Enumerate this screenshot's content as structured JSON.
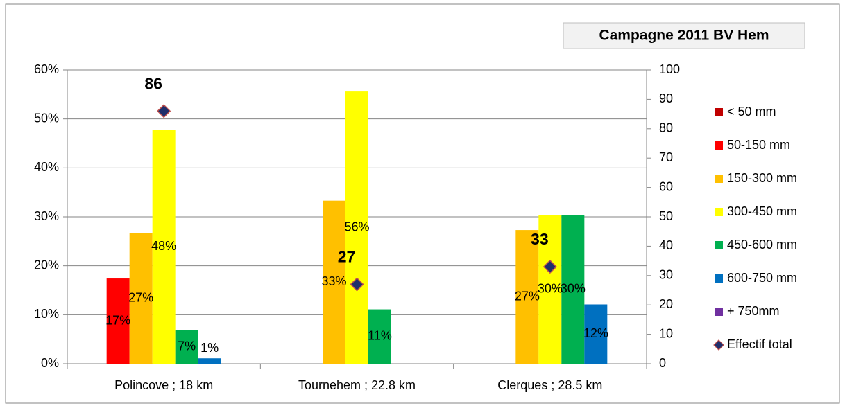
{
  "chart_data": {
    "type": "bar",
    "title": "Campagne 2011 BV Hem",
    "categories": [
      "Polincove ; 18 km",
      "Tournehem ; 22.8 km",
      "Clerques ; 28.5 km"
    ],
    "series": [
      {
        "name": "< 50 mm",
        "color": "#c00000",
        "values": [
          null,
          null,
          null
        ],
        "value_labels": [
          null,
          null,
          null
        ]
      },
      {
        "name": "50-150 mm",
        "color": "#ff0000",
        "values": [
          17.4,
          null,
          null
        ],
        "value_labels": [
          "17%",
          null,
          null
        ]
      },
      {
        "name": "150-300 mm",
        "color": "#ffc000",
        "values": [
          26.7,
          33.3,
          27.3
        ],
        "value_labels": [
          "27%",
          "33%",
          "27%"
        ]
      },
      {
        "name": "300-450 mm",
        "color": "#ffff00",
        "values": [
          47.7,
          55.6,
          30.3
        ],
        "value_labels": [
          "48%",
          "56%",
          "30%"
        ]
      },
      {
        "name": "450-600 mm",
        "color": "#00b050",
        "values": [
          6.9,
          11.1,
          30.3
        ],
        "value_labels": [
          "7%",
          "11%",
          "30%"
        ]
      },
      {
        "name": "600-750 mm",
        "color": "#0070c0",
        "values": [
          1.1,
          null,
          12.1
        ],
        "value_labels": [
          "1%",
          null,
          "12%"
        ]
      },
      {
        "name": "+ 750mm",
        "color": "#7030a0",
        "values": [
          null,
          null,
          null
        ],
        "value_labels": [
          null,
          null,
          null
        ]
      },
      {
        "name": "Effectif total",
        "type": "scatter",
        "axis": "y2",
        "color": "#1f2f6b",
        "values": [
          86,
          27,
          33
        ]
      }
    ],
    "ylim": [
      0,
      60
    ],
    "yticks": [
      {
        "value": 0,
        "label": "0%"
      },
      {
        "value": 10,
        "label": "10%"
      },
      {
        "value": 20,
        "label": "20%"
      },
      {
        "value": 30,
        "label": "30%"
      },
      {
        "value": 40,
        "label": "40%"
      },
      {
        "value": 50,
        "label": "50%"
      },
      {
        "value": 60,
        "label": "60%"
      }
    ],
    "y2lim": [
      0,
      100
    ],
    "y2ticks": [
      0,
      10,
      20,
      30,
      40,
      50,
      60,
      70,
      80,
      90,
      100
    ],
    "grid": true,
    "legend": "right"
  }
}
